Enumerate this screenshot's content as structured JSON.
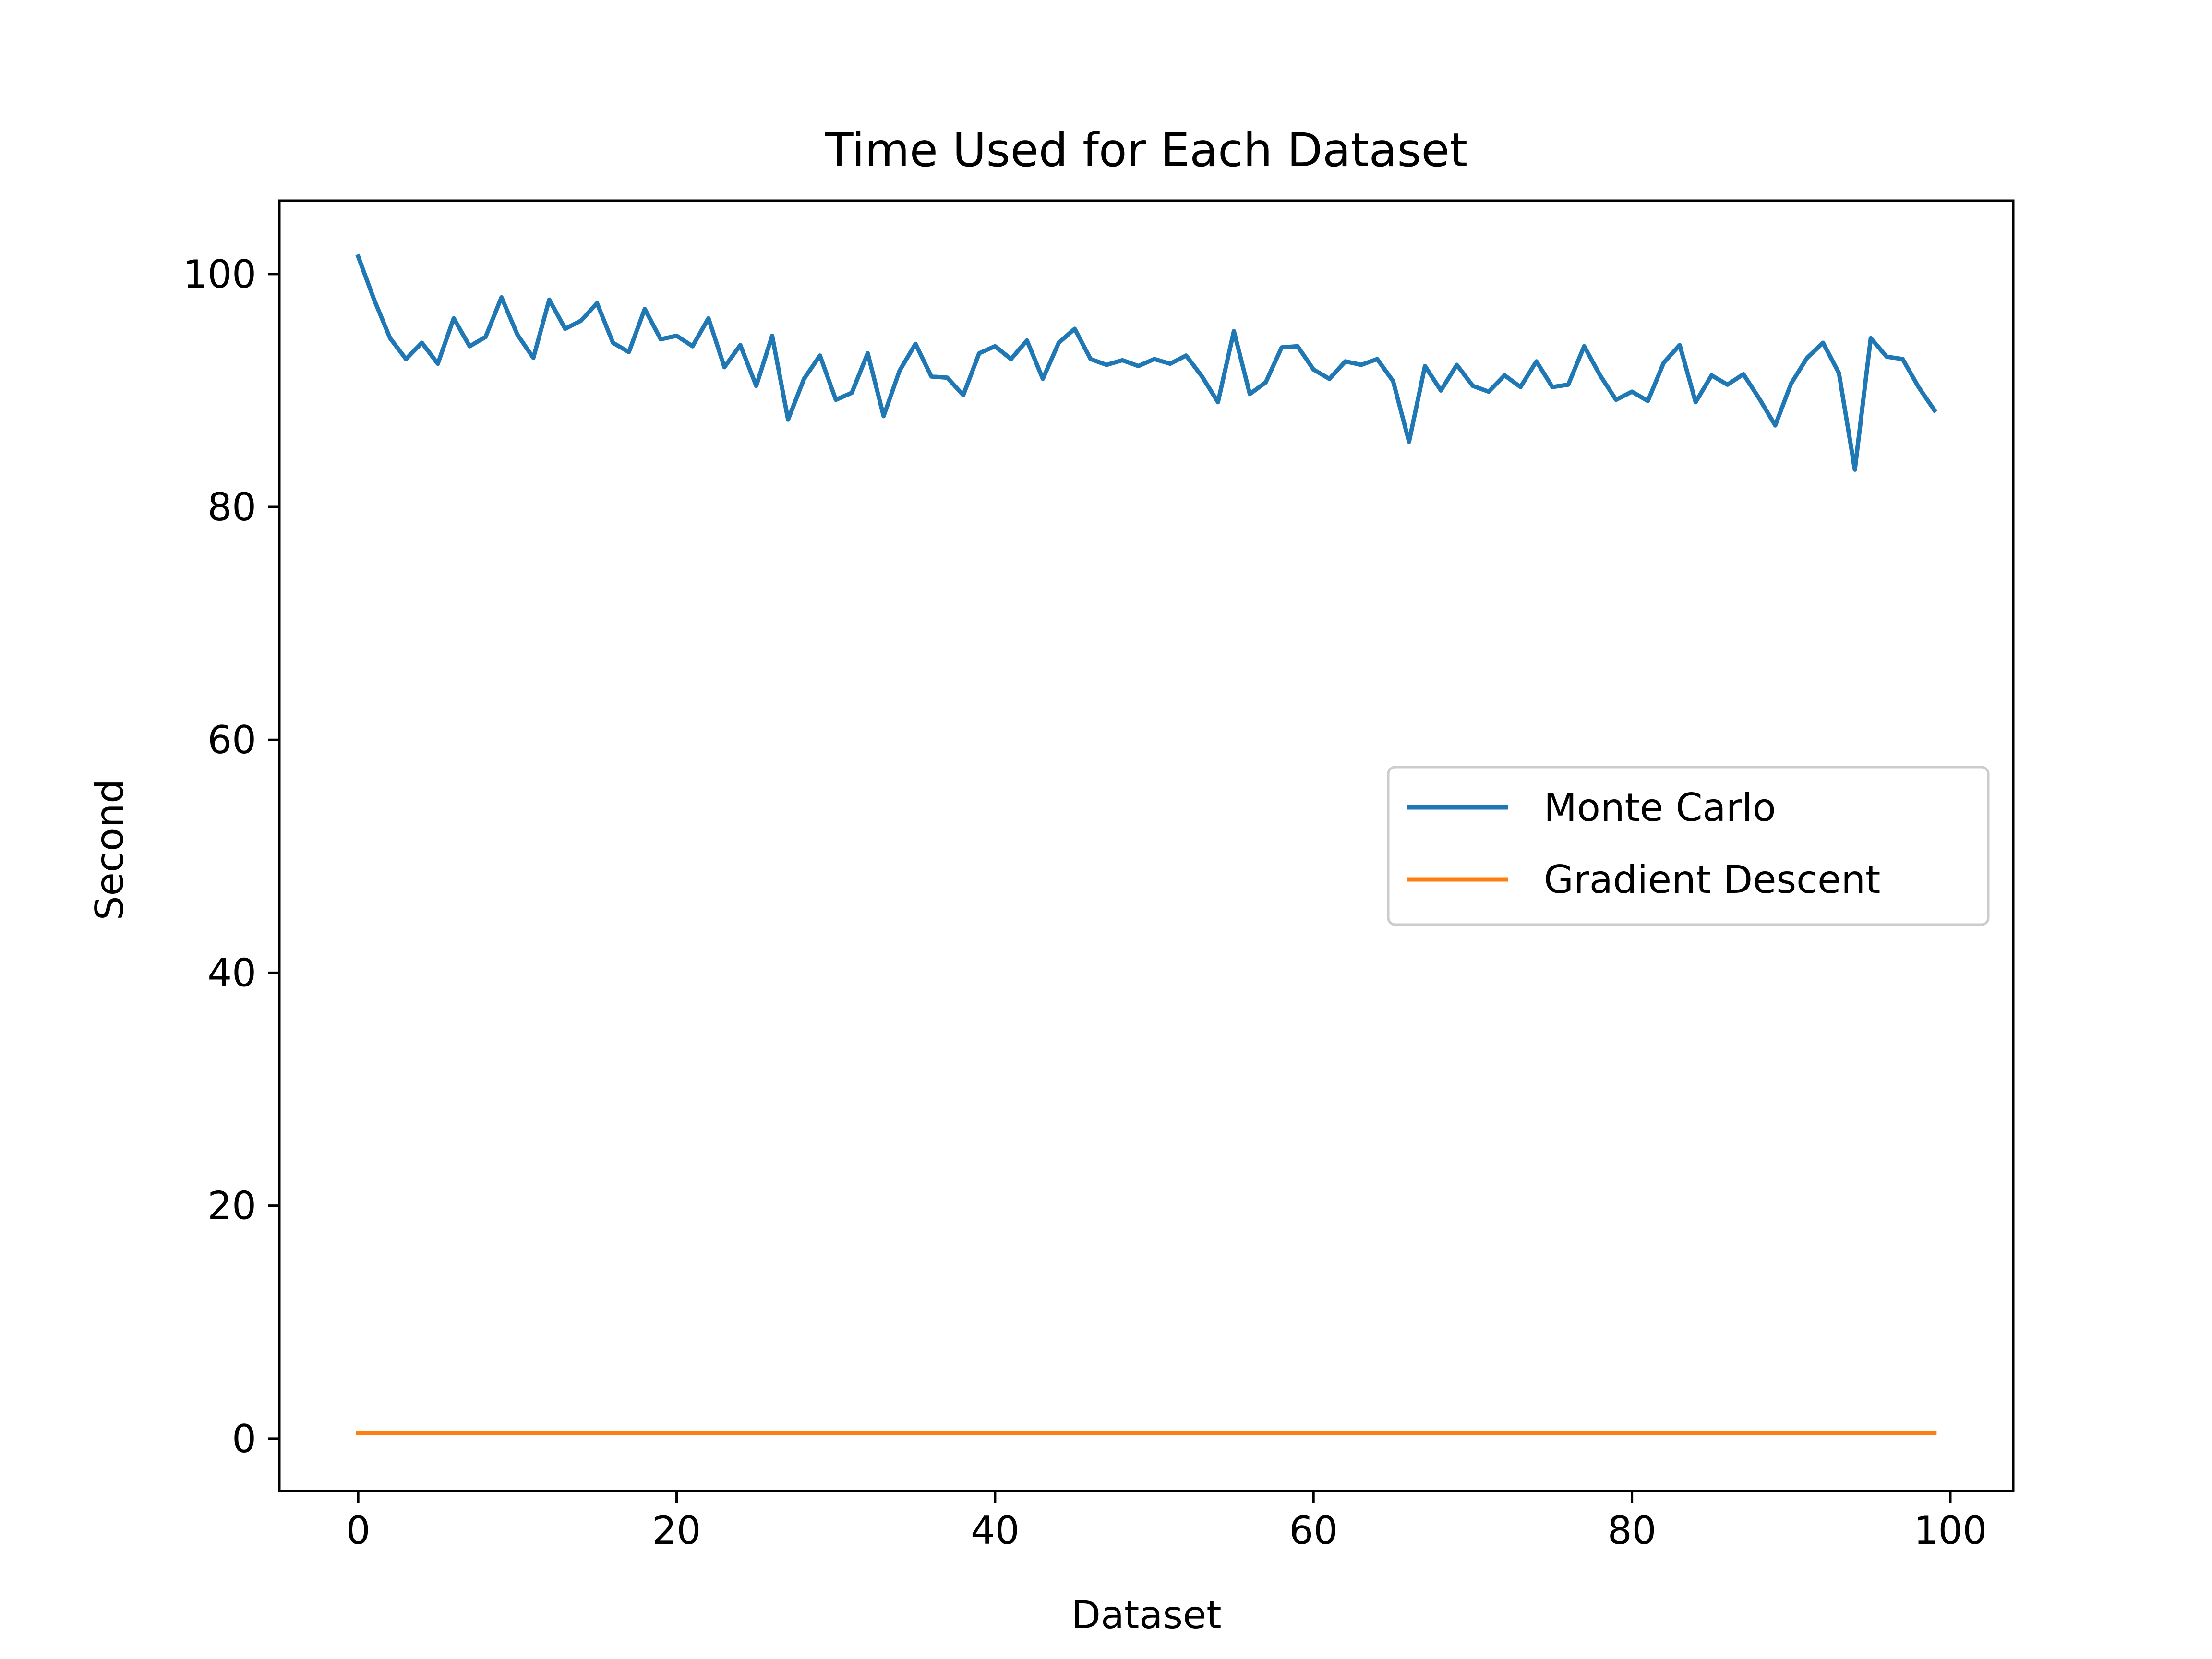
{
  "chart_data": {
    "type": "line",
    "title": "Time Used for Each Dataset",
    "xlabel": "Dataset",
    "ylabel": "Second",
    "xlim": [
      -4.95,
      103.95
    ],
    "ylim": [
      -4.5,
      106.3
    ],
    "xticks": [
      0,
      20,
      40,
      60,
      80,
      100
    ],
    "yticks": [
      0,
      20,
      40,
      60,
      80,
      100
    ],
    "grid": false,
    "legend_position": "center-right",
    "colors": {
      "Monte Carlo": "#1f77b4",
      "Gradient Descent": "#ff7f0e"
    },
    "series": [
      {
        "name": "Monte Carlo",
        "x": [
          0,
          1,
          2,
          3,
          4,
          5,
          6,
          7,
          8,
          9,
          10,
          11,
          12,
          13,
          14,
          15,
          16,
          17,
          18,
          19,
          20,
          21,
          22,
          23,
          24,
          25,
          26,
          27,
          28,
          29,
          30,
          31,
          32,
          33,
          34,
          35,
          36,
          37,
          38,
          39,
          40,
          41,
          42,
          43,
          44,
          45,
          46,
          47,
          48,
          49,
          50,
          51,
          52,
          53,
          54,
          55,
          56,
          57,
          58,
          59,
          60,
          61,
          62,
          63,
          64,
          65,
          66,
          67,
          68,
          69,
          70,
          71,
          72,
          73,
          74,
          75,
          76,
          77,
          78,
          79,
          80,
          81,
          82,
          83,
          84,
          85,
          86,
          87,
          88,
          89,
          90,
          91,
          92,
          93,
          94,
          95,
          96,
          97,
          98,
          99
        ],
        "values": [
          101.5,
          97.8,
          94.5,
          92.7,
          94.1,
          92.3,
          96.2,
          93.8,
          94.6,
          98.0,
          94.8,
          92.8,
          97.8,
          95.3,
          96.0,
          97.5,
          94.1,
          93.3,
          97.0,
          94.4,
          94.7,
          93.8,
          96.2,
          92.0,
          93.9,
          90.4,
          94.7,
          87.5,
          91.0,
          93.0,
          89.2,
          89.8,
          93.2,
          87.8,
          91.7,
          94.0,
          91.2,
          91.1,
          89.6,
          93.2,
          93.8,
          92.7,
          94.3,
          91.0,
          94.1,
          95.3,
          92.7,
          92.2,
          92.6,
          92.1,
          92.7,
          92.3,
          93.0,
          91.2,
          89.0,
          95.1,
          89.7,
          90.7,
          93.7,
          93.8,
          91.8,
          91.0,
          92.5,
          92.2,
          92.7,
          90.8,
          85.6,
          92.1,
          90.0,
          92.2,
          90.4,
          89.9,
          91.3,
          90.3,
          92.5,
          90.3,
          90.5,
          93.8,
          91.3,
          89.2,
          89.9,
          89.1,
          92.4,
          93.9,
          89.0,
          91.3,
          90.5,
          91.4,
          89.3,
          87.0,
          90.6,
          92.8,
          94.1,
          91.5,
          83.2,
          94.5,
          92.9,
          92.7,
          90.3,
          88.3
        ]
      },
      {
        "name": "Gradient Descent",
        "x": [
          0,
          99
        ],
        "values": [
          0.5,
          0.5
        ]
      }
    ]
  }
}
